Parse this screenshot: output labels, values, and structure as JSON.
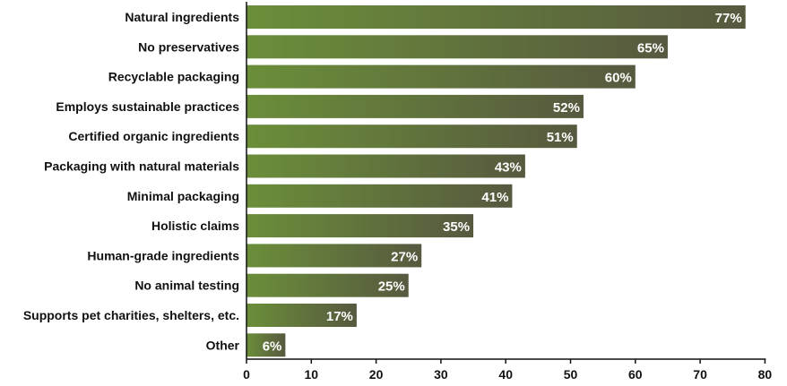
{
  "chart_data": {
    "type": "bar",
    "orientation": "horizontal",
    "categories": [
      "Natural ingredients",
      "No preservatives",
      "Recyclable packaging",
      "Employs sustainable practices",
      "Certified organic ingredients",
      "Packaging with natural materials",
      "Minimal packaging",
      "Holistic claims",
      "Human-grade ingredients",
      "No animal testing",
      "Supports pet charities, shelters, etc.",
      "Other"
    ],
    "values": [
      77,
      65,
      60,
      52,
      51,
      43,
      41,
      35,
      27,
      25,
      17,
      6
    ],
    "data_labels": [
      "77%",
      "65%",
      "60%",
      "52%",
      "51%",
      "43%",
      "41%",
      "35%",
      "27%",
      "25%",
      "17%",
      "6%"
    ],
    "xlim": [
      0,
      80
    ],
    "x_ticks": [
      0,
      10,
      20,
      30,
      40,
      50,
      60,
      70,
      80
    ],
    "title": "",
    "xlabel": "",
    "ylabel": "",
    "grid": false,
    "colors": {
      "bar_dark": "#57593f",
      "bar_light": "#6b8e3a",
      "axis": "#111111",
      "data_label": "#ffffff"
    }
  }
}
